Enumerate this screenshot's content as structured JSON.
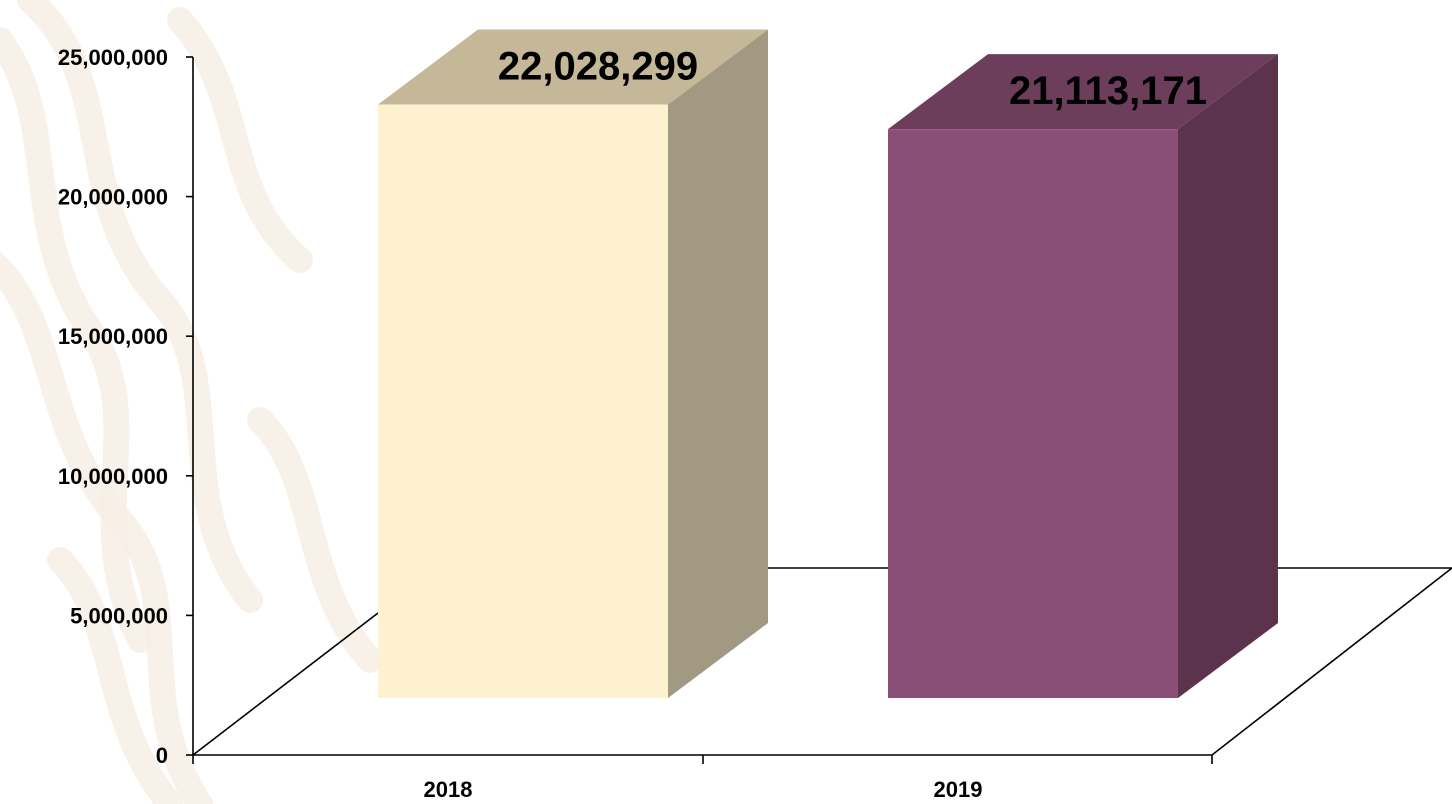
{
  "chart_data": {
    "type": "bar",
    "categories": [
      "2018",
      "2019"
    ],
    "values": [
      22028299,
      21113171
    ],
    "data_labels": [
      "22,028,299",
      "21,113,171"
    ],
    "ylim": [
      0,
      25000000
    ],
    "yticks": [
      0,
      5000000,
      10000000,
      15000000,
      20000000,
      25000000
    ],
    "ytick_labels": [
      "0",
      "5,000,000",
      "10,000,000",
      "15,000,000",
      "20,000,000",
      "25,000,000"
    ],
    "grid": false,
    "legend": "none",
    "style": "3d-column",
    "colors": {
      "2018": {
        "front": "#FDF1CF",
        "side": "#A29982",
        "top": "#C4B898"
      },
      "2019": {
        "front": "#8A4F77",
        "side": "#5B334C",
        "top": "#6D3D5C"
      },
      "background_watermark": "#F7EEE5"
    }
  }
}
